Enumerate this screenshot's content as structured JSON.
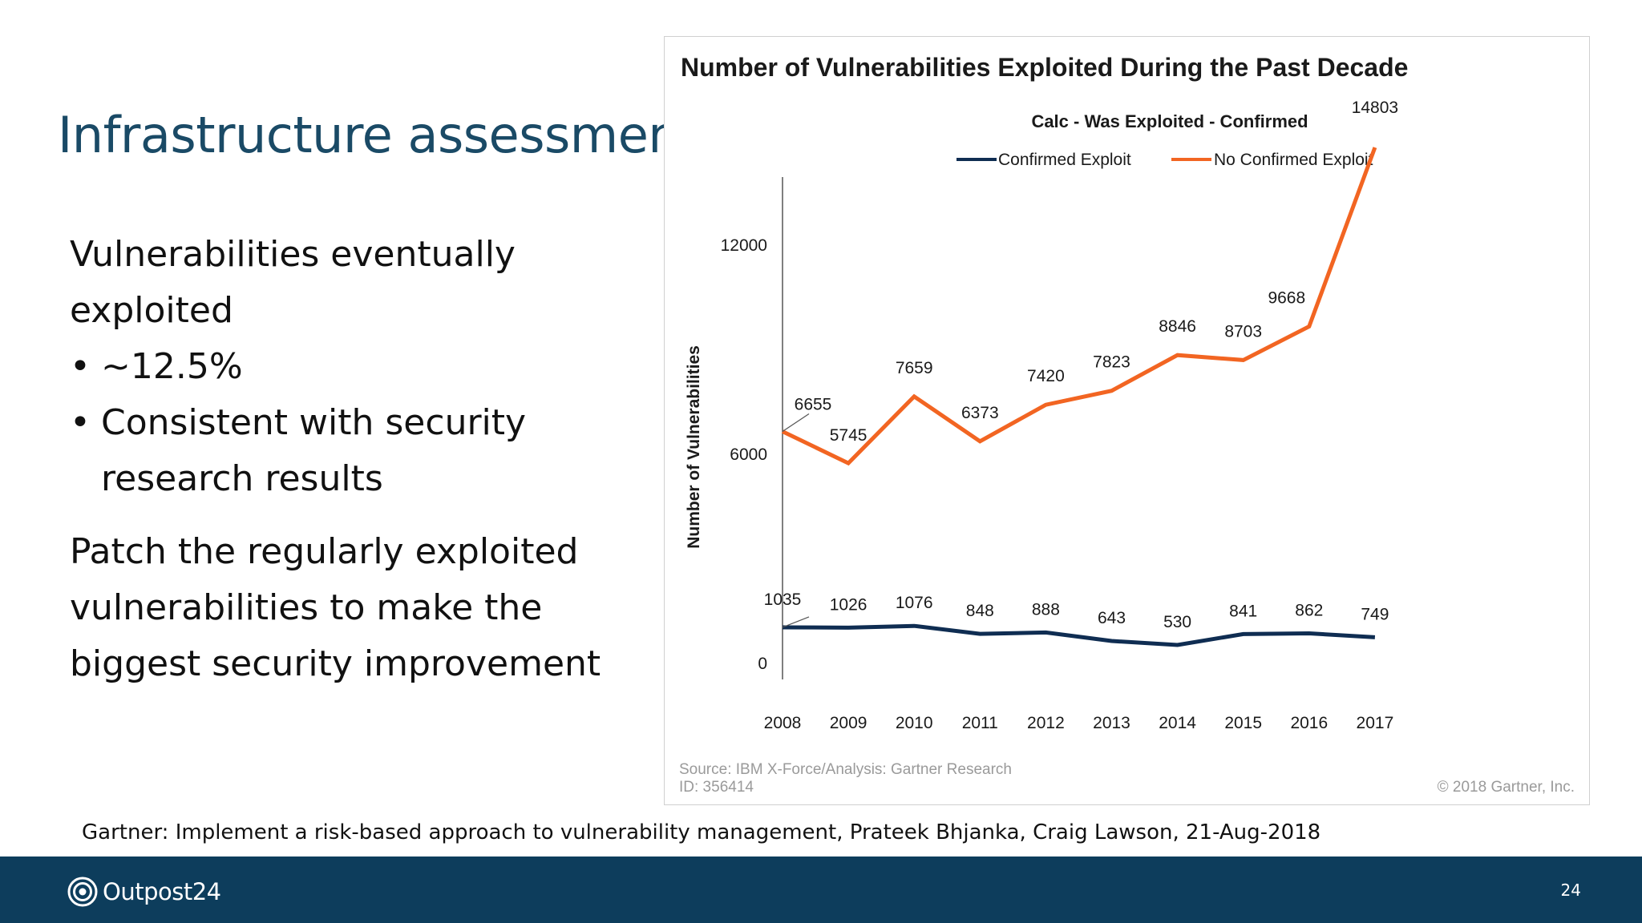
{
  "slide": {
    "title": "Infrastructure assessments",
    "intro": "Vulnerabilities eventually exploited",
    "bullets": [
      "~12.5%",
      "Consistent with security research results"
    ],
    "bullet_symbol": "•",
    "takeaway": "Patch the regularly exploited vulnerabilities to make the biggest security improvement",
    "citation": "Gartner: Implement a risk-based approach to vulnerability management, Prateek Bhjanka, Craig Lawson, 21-Aug-2018",
    "page_number": "24"
  },
  "footer": {
    "logo_text": "Outpost24",
    "background": "#0d3d5c"
  },
  "chart_data": {
    "type": "line",
    "title": "Number of Vulnerabilities Exploited During the Past Decade",
    "subtitle": "Calc - Was Exploited - Confirmed",
    "xlabel": "",
    "ylabel": "Number of Vulnerabilities",
    "categories": [
      "2008",
      "2009",
      "2010",
      "2011",
      "2012",
      "2013",
      "2014",
      "2015",
      "2016",
      "2017"
    ],
    "yticks": [
      0,
      6000,
      12000
    ],
    "ylim": [
      0,
      15000
    ],
    "grid": false,
    "legend": "top",
    "series": [
      {
        "name": "Confirmed Exploit",
        "color": "#0f2d52",
        "values": [
          1035,
          1026,
          1076,
          848,
          888,
          643,
          530,
          841,
          862,
          749
        ]
      },
      {
        "name": "No Confirmed Exploit",
        "color": "#f26522",
        "values": [
          6655,
          5745,
          7659,
          6373,
          7420,
          7823,
          8846,
          8703,
          9668,
          14803
        ]
      }
    ],
    "source": "Source: IBM X-Force/Analysis: Gartner Research",
    "id": "ID: 356414",
    "copyright": "© 2018 Gartner, Inc."
  }
}
